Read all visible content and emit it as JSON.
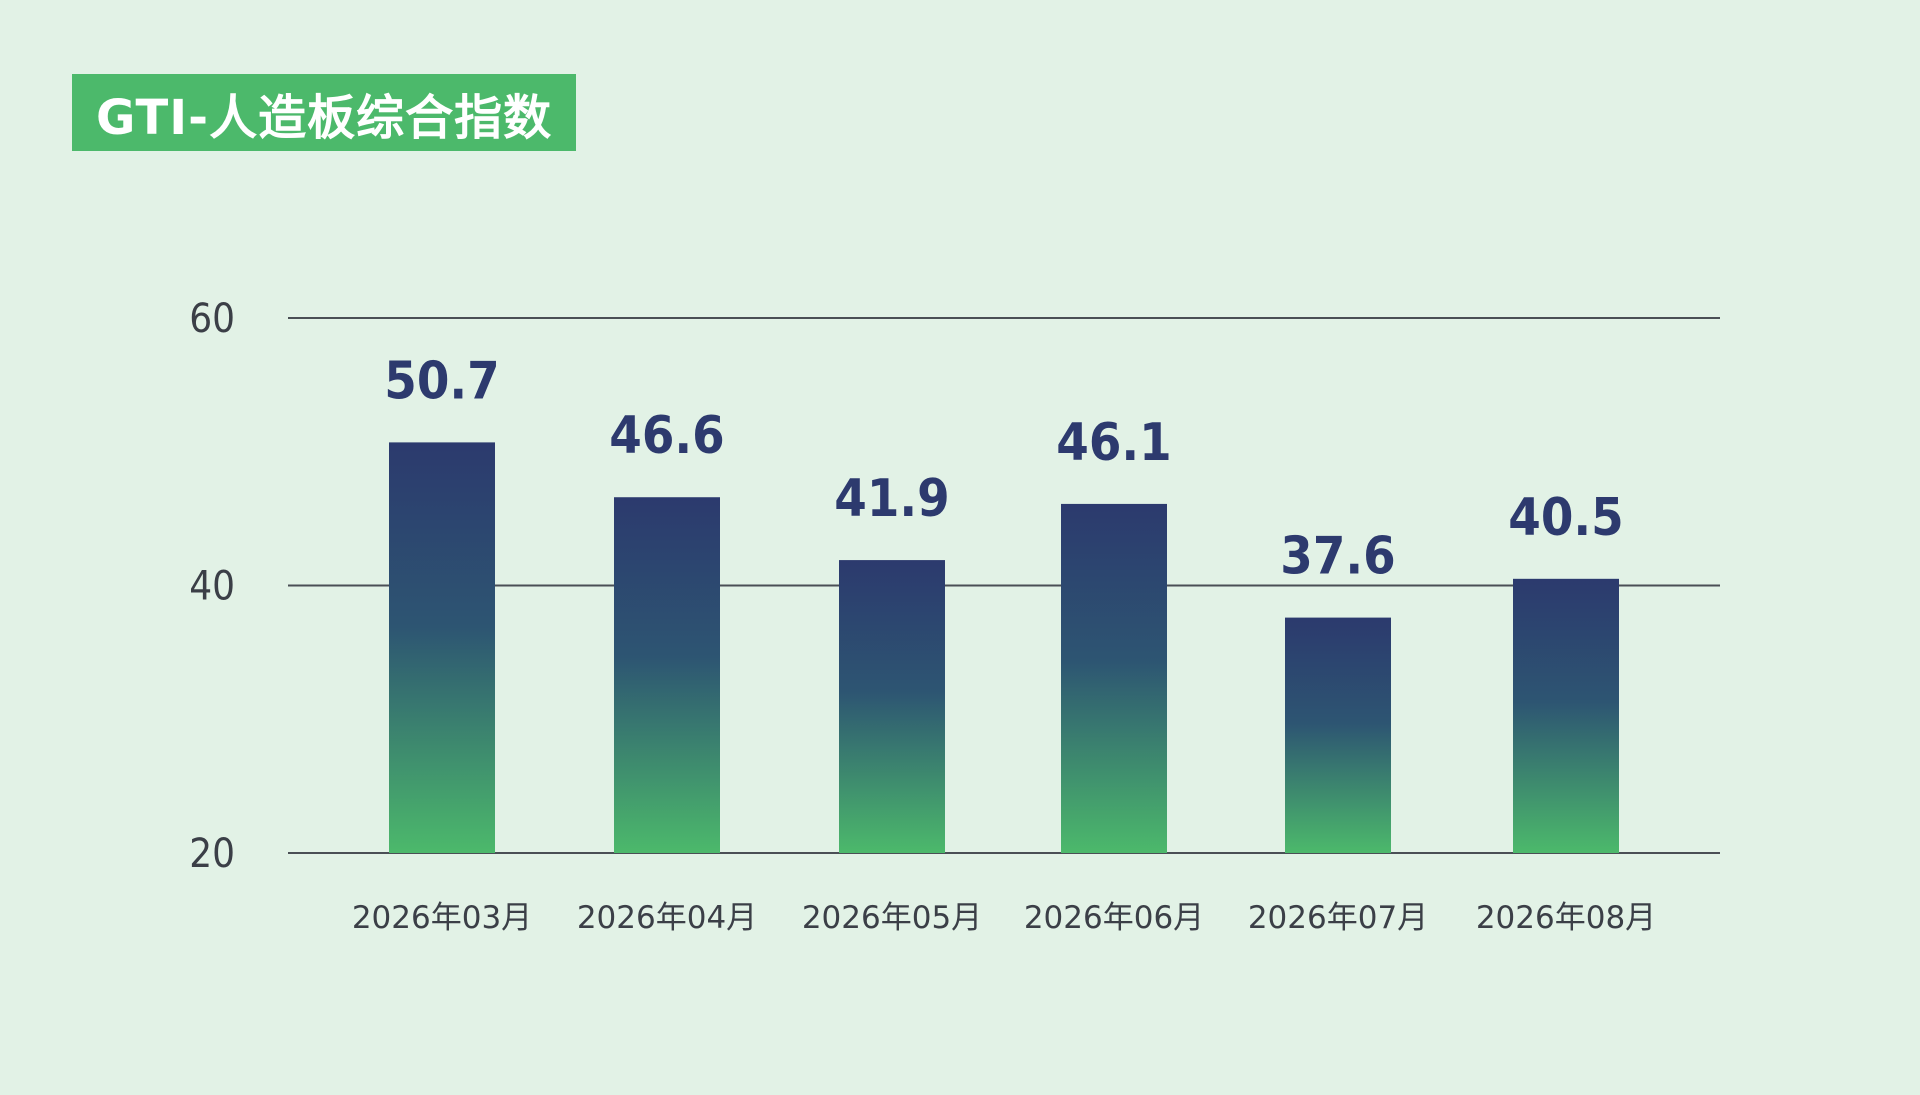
{
  "title": "GTI-人造板综合指数",
  "colors": {
    "background": "#e2f2e6",
    "title_badge": "#4cb96b",
    "bar_top": "#2c3a6e",
    "bar_bottom": "#4cb96b",
    "value_label": "#2d3a6e"
  },
  "chart_data": {
    "type": "bar",
    "title": "",
    "xlabel": "",
    "ylabel": "",
    "categories": [
      "2026年03月",
      "2026年04月",
      "2026年05月",
      "2026年06月",
      "2026年07月",
      "2026年08月"
    ],
    "values": [
      50.7,
      46.6,
      41.9,
      46.1,
      37.6,
      40.5
    ],
    "value_labels": [
      "50.7",
      "46.6",
      "41.9",
      "46.1",
      "37.6",
      "40.5"
    ],
    "ylim": [
      20,
      60
    ],
    "yticks": [
      20,
      40,
      60
    ],
    "ytick_labels": [
      "20",
      "40",
      "60"
    ],
    "grid": true,
    "legend": "none"
  }
}
